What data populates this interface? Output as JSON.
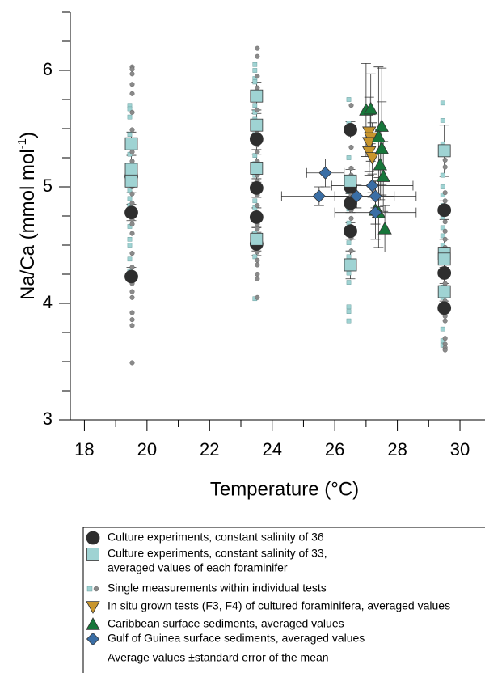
{
  "chart_data": {
    "type": "scatter",
    "x_label": "Temperature (°C)",
    "y_label": "Na/Ca (mmol mol",
    "y_label_sup": "-1",
    "y_label_end": ")",
    "xlim": [
      17.55,
      30.8
    ],
    "ylim": [
      3,
      6.5
    ],
    "xticks": [
      18,
      20,
      22,
      24,
      26,
      28,
      30
    ],
    "x_minor_ticks": [
      19,
      21,
      23,
      25,
      27,
      29
    ],
    "yticks": [
      3,
      4,
      5,
      6
    ],
    "y_minor_ticks": [
      3.25,
      3.5,
      3.75,
      4.25,
      4.5,
      4.75,
      5.25,
      5.5,
      5.75,
      6.25,
      6.5
    ],
    "legend_note": "Average values ±standard error of the mean",
    "series": [
      {
        "name": "Culture experiments, constant salinity of 36",
        "marker": "circle",
        "color": "#2e2e2e",
        "x": [
          19.5,
          19.5,
          19.5,
          23.5,
          23.5,
          23.5,
          23.5,
          26.5,
          26.5,
          26.5,
          26.5,
          29.5,
          29.5,
          29.5
        ],
        "values": [
          5.09,
          4.78,
          4.23,
          5.41,
          4.99,
          4.74,
          4.51,
          5.49,
          5.0,
          4.86,
          4.62,
          4.8,
          4.26,
          3.96
        ],
        "errors": [
          0.08,
          0.07,
          0.08,
          0.09,
          0.08,
          0.08,
          0.1,
          0.07,
          0.08,
          0.08,
          0.07,
          0.08,
          0.09,
          0.06
        ]
      },
      {
        "name": "Culture experiments, constant salinity of 33,",
        "name_continued": "averaged values of each foraminifer",
        "marker": "square",
        "color": "#9fd3d3",
        "x": [
          19.5,
          19.5,
          19.5,
          23.5,
          23.5,
          23.5,
          23.5,
          26.5,
          26.5,
          29.5,
          29.5,
          29.5,
          29.5
        ],
        "values": [
          5.37,
          5.15,
          5.05,
          5.78,
          5.53,
          5.16,
          4.55,
          5.05,
          4.33,
          5.31,
          4.43,
          4.38,
          4.1
        ],
        "errors": [
          0.1,
          0.12,
          0.1,
          0.12,
          0.1,
          0.12,
          0.1,
          0.1,
          0.12,
          0.22,
          0.12,
          0.1,
          0.12
        ]
      },
      {
        "name": "Single measurements within individual tests",
        "marker": "single",
        "colors": [
          "#9fd3d3",
          "#8a8a8a"
        ],
        "groups": [
          {
            "x": 19.5,
            "circles": [
              6.03,
              6.01,
              5.97,
              5.88,
              5.8,
              5.64,
              5.49,
              5.3,
              5.22,
              5.0,
              4.94,
              4.86,
              4.72,
              4.68,
              4.6,
              4.43,
              4.31,
              4.17,
              4.1,
              4.05,
              3.92,
              3.86,
              3.81,
              3.49
            ],
            "squares": [
              5.7,
              5.67,
              5.6,
              5.45,
              5.28,
              5.18,
              5.12,
              5.02,
              4.97,
              4.9,
              4.84,
              4.66,
              4.55,
              4.5,
              4.38,
              4.28
            ]
          },
          {
            "x": 23.5,
            "circles": [
              6.19,
              6.12,
              5.95,
              5.85,
              5.66,
              5.48,
              5.36,
              5.3,
              5.22,
              5.1,
              5.05,
              4.93,
              4.84,
              4.68,
              4.64,
              4.44,
              4.37,
              4.33,
              4.25,
              4.21,
              4.05
            ],
            "squares": [
              6.05,
              6.0,
              5.93,
              5.9,
              5.7,
              5.64,
              5.58,
              5.45,
              5.38,
              5.27,
              5.2,
              5.1,
              4.98,
              4.88,
              4.82,
              4.72,
              4.6,
              4.5,
              4.4,
              4.04
            ]
          },
          {
            "x": 26.5,
            "circles": [
              5.7,
              5.53,
              5.34,
              5.16,
              5.1,
              4.93,
              4.88,
              4.8,
              4.73,
              4.66,
              4.56,
              4.45,
              4.36
            ],
            "squares": [
              5.75,
              5.55,
              5.25,
              5.07,
              4.96,
              4.81,
              4.69,
              4.52,
              4.4,
              4.26,
              4.18,
              3.97,
              3.93,
              3.85
            ]
          },
          {
            "x": 29.5,
            "circles": [
              5.23,
              5.17,
              4.95,
              4.88,
              4.7,
              4.62,
              4.55,
              4.48,
              4.35,
              4.3,
              4.17,
              4.11,
              4.02,
              3.89,
              3.85,
              3.7,
              3.65,
              3.62,
              3.6
            ],
            "squares": [
              5.72,
              5.57,
              5.37,
              5.1,
              5.0,
              4.93,
              4.84,
              4.74,
              4.65,
              4.58,
              4.5,
              4.42,
              4.35,
              4.23,
              4.14,
              4.05,
              3.93,
              3.78,
              3.68,
              3.64
            ]
          }
        ]
      },
      {
        "name": "In situ grown tests (F3, F4) of cultured foraminifera, averaged values",
        "marker": "triangle-down",
        "color": "#c8962e",
        "x": [
          27.1,
          27.15,
          27.1,
          27.1,
          27.2
        ],
        "values": [
          5.47,
          5.42,
          5.38,
          5.3,
          5.25
        ],
        "errors": [
          0.3,
          0.2,
          0.25,
          0.2,
          0.3
        ]
      },
      {
        "name": "Caribbean surface sediments, averaged values",
        "marker": "triangle",
        "color": "#17763a",
        "x": [
          27.0,
          27.15,
          27.5,
          27.4,
          27.5,
          27.45,
          27.55,
          27.3,
          27.4,
          27.6
        ],
        "values": [
          5.66,
          5.67,
          5.52,
          5.43,
          5.33,
          5.19,
          5.09,
          4.8,
          4.78,
          4.64
        ],
        "errors": [
          0.4,
          0.3,
          0.5,
          0.6,
          0.4,
          0.3,
          0.3,
          0.25,
          0.3,
          0.2
        ]
      },
      {
        "name": "Gulf of Guinea surface sediments, averaged values",
        "marker": "diamond",
        "color": "#3a6ea5",
        "x": [
          25.7,
          25.5,
          26.7,
          27.2,
          27.3,
          27.3
        ],
        "values": [
          5.12,
          4.92,
          4.92,
          5.01,
          4.92,
          4.78
        ],
        "errors": [
          0.12,
          0.08,
          0.1,
          0.1,
          0.1,
          0.1
        ],
        "x_errors": [
          0.6,
          1.2,
          1.2,
          1.3,
          1.3,
          1.3
        ]
      }
    ]
  }
}
